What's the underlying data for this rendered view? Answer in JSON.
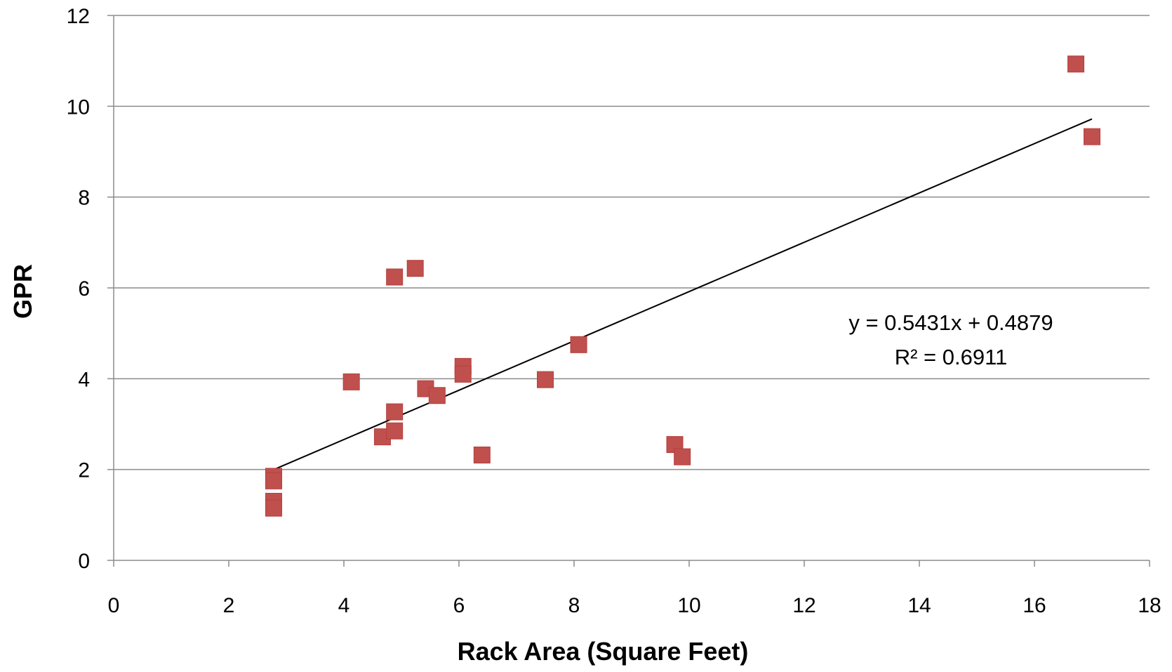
{
  "chart_data": {
    "type": "scatter",
    "title": "",
    "xlabel": "Rack Area (Square Feet)",
    "ylabel": "GPR",
    "xlim": [
      0,
      18
    ],
    "ylim": [
      0,
      12
    ],
    "x_ticks": [
      0,
      2,
      4,
      6,
      8,
      10,
      12,
      14,
      16,
      18
    ],
    "y_ticks": [
      0,
      2,
      4,
      6,
      8,
      10,
      12
    ],
    "grid": "horizontal",
    "legend": "none",
    "marker": "square",
    "marker_color": "#C0504D",
    "series": [
      {
        "x": [
          2.78,
          2.78,
          2.78,
          2.78,
          4.13,
          4.67,
          4.88,
          4.88,
          4.88,
          5.24,
          5.42,
          5.62,
          6.07,
          6.07,
          6.4,
          7.5,
          8.08,
          9.75,
          9.88,
          16.72,
          17.0
        ],
        "y": [
          1.85,
          1.75,
          1.3,
          1.15,
          3.93,
          2.72,
          2.85,
          3.27,
          6.24,
          6.43,
          3.78,
          3.63,
          4.27,
          4.1,
          2.32,
          3.98,
          4.75,
          2.55,
          2.28,
          10.93,
          9.33
        ]
      }
    ],
    "trendline": {
      "type": "linear",
      "slope": 0.5431,
      "intercept": 0.4879,
      "x_range": [
        2.78,
        17.0
      ],
      "color": "#000000"
    },
    "annotations": {
      "equation": "y = 0.5431x + 0.4879",
      "r_squared": "R² = 0.6911"
    }
  }
}
